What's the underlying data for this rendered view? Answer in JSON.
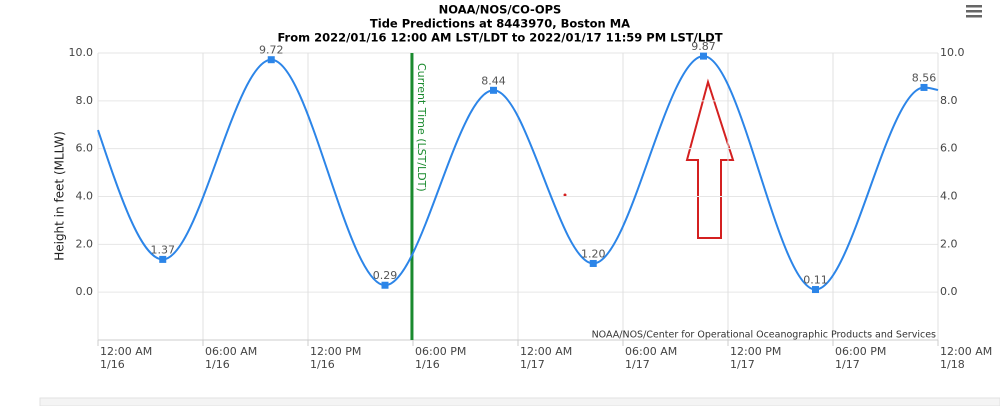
{
  "chart_data": {
    "type": "line",
    "title": "NOAA/NOS/CO-OPS",
    "subtitle": "Tide Predictions at 8443970, Boston MA",
    "subtitle2": "From 2022/01/16 12:00 AM LST/LDT to 2022/01/17 11:59 PM LST/LDT",
    "y_label": "Height in feet (MLLW)",
    "credit": "NOAA/NOS/Center for Operational Oceanographic Products and Services",
    "current_time": {
      "x": 17.94,
      "label": "Current Time (LST/LDT)",
      "color": "#1a8a2e"
    },
    "xlim": [
      0,
      48
    ],
    "xticks": [
      {
        "value": 0,
        "label": [
          "12:00 AM",
          "1/16"
        ]
      },
      {
        "value": 6,
        "label": [
          "06:00 AM",
          "1/16"
        ]
      },
      {
        "value": 12,
        "label": [
          "12:00 PM",
          "1/16"
        ]
      },
      {
        "value": 18,
        "label": [
          "06:00 PM",
          "1/16"
        ]
      },
      {
        "value": 24,
        "label": [
          "12:00 AM",
          "1/17"
        ]
      },
      {
        "value": 30,
        "label": [
          "06:00 AM",
          "1/17"
        ]
      },
      {
        "value": 36,
        "label": [
          "12:00 PM",
          "1/17"
        ]
      },
      {
        "value": 42,
        "label": [
          "06:00 PM",
          "1/17"
        ]
      },
      {
        "value": 48,
        "label": [
          "12:00 AM",
          "1/18"
        ]
      }
    ],
    "ylim": [
      -2,
      10
    ],
    "yticks": [
      {
        "value": 0,
        "label": "0.0"
      },
      {
        "value": 2,
        "label": "2.0"
      },
      {
        "value": 4,
        "label": "4.0"
      },
      {
        "value": 6,
        "label": "6.0"
      },
      {
        "value": 8,
        "label": "8.0"
      },
      {
        "value": 10,
        "label": "10.0"
      }
    ],
    "y2lim": [
      -2,
      10
    ],
    "y2ticks": [
      {
        "value": 0,
        "label": "0.0"
      },
      {
        "value": 2,
        "label": "2.0"
      },
      {
        "value": 4,
        "label": "4.0"
      },
      {
        "value": 6,
        "label": "6.0"
      },
      {
        "value": 8,
        "label": "8.0"
      },
      {
        "value": 10,
        "label": "10.0"
      }
    ],
    "grid": true,
    "series": [
      {
        "color": "#2c85e8",
        "x": [
          0,
          3.7,
          9.9,
          16.4,
          22.6,
          28.3,
          34.6,
          41.0,
          47.2,
          48
        ],
        "values": [
          6.78,
          1.37,
          9.72,
          0.29,
          8.44,
          1.2,
          9.87,
          0.11,
          8.56,
          8.45
        ],
        "value_labels": [
          null,
          "1.37",
          "9.72",
          "0.29",
          "8.44",
          "1.20",
          "9.87",
          "0.11",
          "8.56",
          null
        ]
      }
    ]
  }
}
